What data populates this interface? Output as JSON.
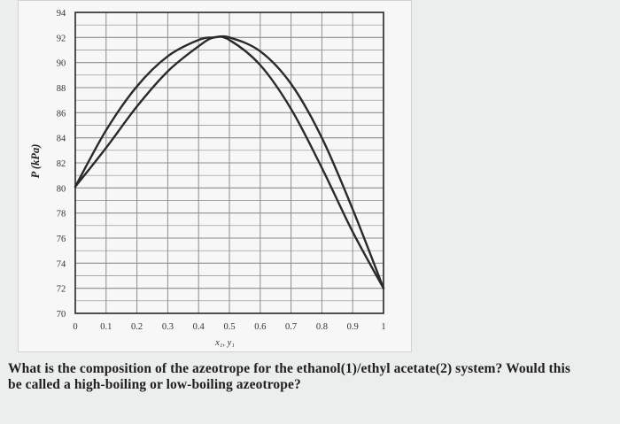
{
  "chart_data": {
    "type": "line",
    "xlabel": "x₁, y₁",
    "ylabel": "P (kPa)",
    "xlim": [
      0,
      1
    ],
    "ylim": [
      70,
      94
    ],
    "grid": true,
    "x_ticks": [
      "0",
      "0.1",
      "0.2",
      "0.3",
      "0.4",
      "0.5",
      "0.6",
      "0.7",
      "0.8",
      "0.9",
      "1"
    ],
    "y_ticks": [
      "70",
      "72",
      "74",
      "76",
      "78",
      "80",
      "82",
      "84",
      "86",
      "88",
      "90",
      "92",
      "94"
    ],
    "series": [
      {
        "values": [
          {
            "x": 0.0,
            "y": 80.1
          },
          {
            "x": 0.1,
            "y": 84.6
          },
          {
            "x": 0.2,
            "y": 88.1
          },
          {
            "x": 0.3,
            "y": 90.5
          },
          {
            "x": 0.4,
            "y": 91.8
          },
          {
            "x": 0.45,
            "y": 92.0
          },
          {
            "x": 0.5,
            "y": 92.0
          },
          {
            "x": 0.6,
            "y": 90.9
          },
          {
            "x": 0.7,
            "y": 88.3
          },
          {
            "x": 0.8,
            "y": 84.0
          },
          {
            "x": 0.9,
            "y": 78.3
          },
          {
            "x": 1.0,
            "y": 72.0
          }
        ]
      },
      {
        "values": [
          {
            "x": 0.0,
            "y": 80.1
          },
          {
            "x": 0.1,
            "y": 83.2
          },
          {
            "x": 0.2,
            "y": 86.5
          },
          {
            "x": 0.3,
            "y": 89.3
          },
          {
            "x": 0.4,
            "y": 91.3
          },
          {
            "x": 0.45,
            "y": 92.0
          },
          {
            "x": 0.5,
            "y": 91.8
          },
          {
            "x": 0.6,
            "y": 89.8
          },
          {
            "x": 0.7,
            "y": 86.3
          },
          {
            "x": 0.8,
            "y": 81.6
          },
          {
            "x": 0.9,
            "y": 76.5
          },
          {
            "x": 1.0,
            "y": 72.0
          }
        ]
      }
    ]
  },
  "question": {
    "line1": "What is the composition of the azeotrope for the ethanol(1)/ethyl acetate(2) system? Would this",
    "line2": "be called a high-boiling or low-boiling azeotrope?"
  },
  "colors": {
    "curve": "#2a2a2a",
    "grid": "#8e8e8e",
    "frame": "#262626",
    "panel": "#f6f7f6",
    "background": "#eceeed"
  }
}
